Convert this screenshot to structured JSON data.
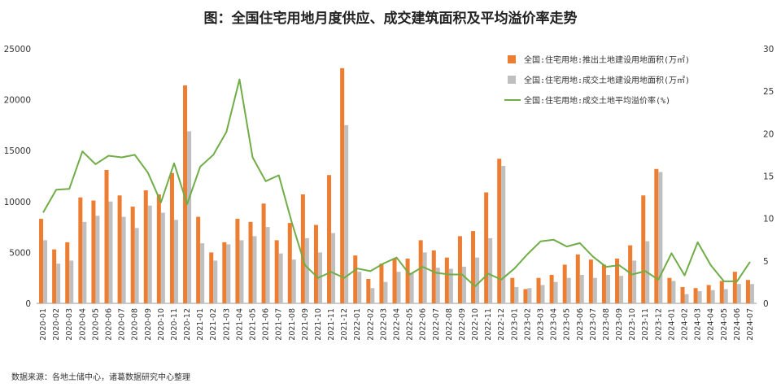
{
  "chart_data": {
    "type": "bar+line",
    "title": "图：全国住宅用地月度供应、成交建筑面积及平均溢价率走势",
    "source": "数据来源：各地土储中心，诸葛数据研究中心整理",
    "categories": [
      "2020-01",
      "2020-02",
      "2020-03",
      "2020-04",
      "2020-05",
      "2020-06",
      "2020-07",
      "2020-08",
      "2020-09",
      "2020-10",
      "2020-11",
      "2020-12",
      "2021-01",
      "2021-02",
      "2021-03",
      "2021-04",
      "2021-05",
      "2021-06",
      "2021-07",
      "2021-08",
      "2021-09",
      "2021-10",
      "2021-11",
      "2021-12",
      "2022-01",
      "2022-02",
      "2022-03",
      "2022-04",
      "2022-05",
      "2022-06",
      "2022-07",
      "2022-08",
      "2022-09",
      "2022-10",
      "2022-11",
      "2022-12",
      "2023-01",
      "2023-02",
      "2023-03",
      "2023-04",
      "2023-05",
      "2023-06",
      "2023-07",
      "2023-08",
      "2023-09",
      "2023-10",
      "2023-11",
      "2023-12",
      "2024-01",
      "2024-02",
      "2024-03",
      "2024-04",
      "2024-05",
      "2024-06",
      "2024-07"
    ],
    "left_axis": {
      "min": 0,
      "max": 25000,
      "ticks": [
        0,
        5000,
        10000,
        15000,
        20000,
        25000
      ]
    },
    "right_axis": {
      "min": 0,
      "max": 30,
      "ticks": [
        0,
        5,
        10,
        15,
        20,
        25,
        30
      ]
    },
    "legend_position": "top-right",
    "series": [
      {
        "name": "全国:住宅用地:推出土地建设用地面积(万㎡)",
        "kind": "bar",
        "axis": "left",
        "color": "#ED7D31",
        "values": [
          8300,
          5300,
          6000,
          10400,
          10100,
          13100,
          10600,
          9500,
          11100,
          10700,
          12800,
          21400,
          8500,
          5000,
          6000,
          8300,
          8000,
          9800,
          6200,
          7900,
          10700,
          7700,
          12600,
          23100,
          4700,
          2400,
          3900,
          4400,
          4400,
          6200,
          5200,
          4500,
          6600,
          7100,
          10900,
          14200,
          2500,
          1400,
          2500,
          2800,
          3800,
          4800,
          4300,
          3800,
          4400,
          5700,
          10600,
          13200,
          2500,
          1600,
          1500,
          1800,
          2200,
          3100,
          2300
        ]
      },
      {
        "name": "全国:住宅用地:成交土地建设用地面积(万㎡)",
        "kind": "bar",
        "axis": "left",
        "color": "#BFBFBF",
        "values": [
          6200,
          3900,
          4200,
          8000,
          8600,
          10000,
          8500,
          7400,
          9600,
          8900,
          8200,
          16900,
          5900,
          4200,
          5800,
          6200,
          6600,
          7500,
          4900,
          4300,
          6400,
          5000,
          6900,
          17500,
          3100,
          1500,
          2100,
          3100,
          3000,
          5000,
          3500,
          3400,
          3600,
          4500,
          6400,
          13500,
          1600,
          1500,
          1800,
          2100,
          2500,
          2800,
          2500,
          2800,
          2700,
          4200,
          6100,
          12900,
          2200,
          900,
          1200,
          1300,
          1400,
          1900,
          1900
        ]
      },
      {
        "name": "全国:住宅用地:成交土地平均溢价率(%)",
        "kind": "line",
        "axis": "right",
        "color": "#70AD47",
        "values": [
          10.7,
          13.4,
          13.5,
          17.9,
          16.4,
          17.4,
          17.2,
          17.5,
          15.4,
          11.9,
          16.5,
          11.7,
          16.1,
          17.5,
          20.2,
          26.4,
          17.2,
          14.4,
          15.1,
          9.5,
          4.5,
          3.0,
          3.7,
          3.0,
          4.1,
          3.8,
          4.7,
          5.4,
          3.4,
          4.3,
          3.6,
          3.4,
          3.4,
          2.0,
          3.5,
          2.8,
          4.1,
          5.8,
          7.3,
          7.5,
          6.7,
          7.1,
          5.5,
          4.3,
          4.5,
          3.4,
          3.8,
          2.8,
          5.9,
          3.3,
          7.2,
          4.5,
          2.6,
          2.6,
          4.9
        ]
      }
    ]
  }
}
